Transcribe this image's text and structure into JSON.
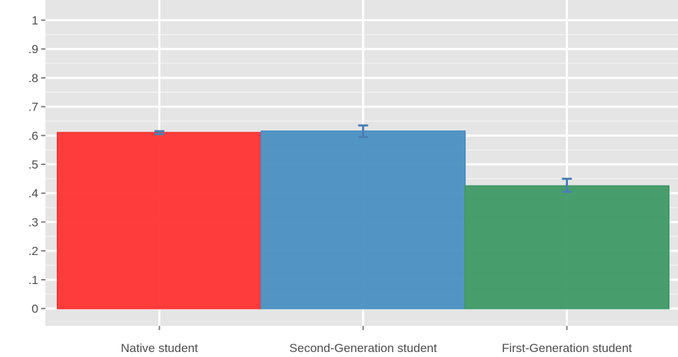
{
  "chart_data": {
    "type": "bar",
    "categories": [
      "Native student",
      "Second-Generation student",
      "First-Generation student"
    ],
    "values": [
      0.61,
      0.615,
      0.425
    ],
    "errors": [
      {
        "low": 0.605,
        "high": 0.615
      },
      {
        "low": 0.595,
        "high": 0.635
      },
      {
        "low": 0.405,
        "high": 0.45
      }
    ],
    "colors": [
      "#ff3333",
      "#4a90c2",
      "#3f9966"
    ],
    "yticks": [
      {
        "value": 0,
        "label": "0"
      },
      {
        "value": 0.1,
        "label": ".1"
      },
      {
        "value": 0.2,
        "label": ".2"
      },
      {
        "value": 0.3,
        "label": ".3"
      },
      {
        "value": 0.4,
        "label": ".4"
      },
      {
        "value": 0.5,
        "label": ".5"
      },
      {
        "value": 0.6,
        "label": ".6"
      },
      {
        "value": 0.7,
        "label": ".7"
      },
      {
        "value": 0.8,
        "label": ".8"
      },
      {
        "value": 0.9,
        "label": ".9"
      },
      {
        "value": 1,
        "label": "1"
      }
    ],
    "ylim": [
      -0.06,
      1.07
    ],
    "title": "",
    "xlabel": "",
    "ylabel": "",
    "grid": true,
    "panel_background": "#e5e5e5"
  }
}
